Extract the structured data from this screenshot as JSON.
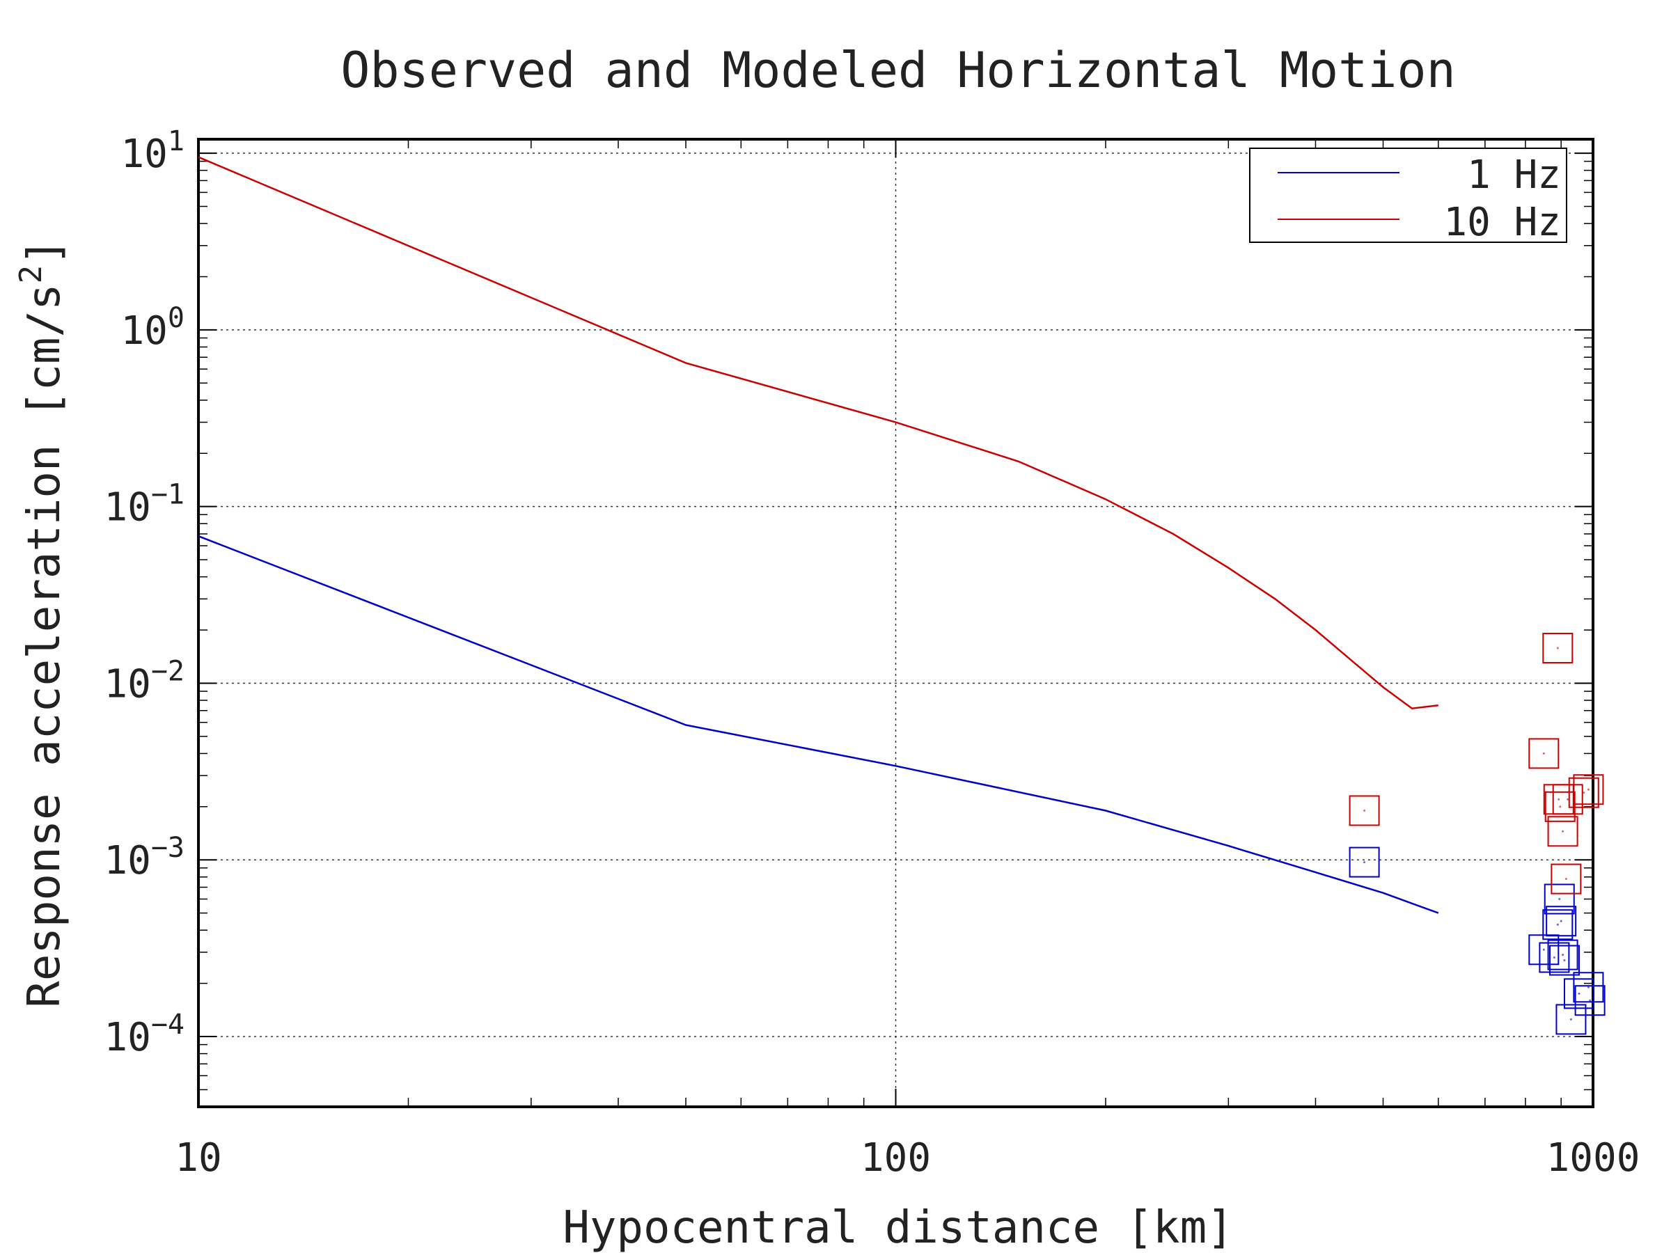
{
  "chart_data": {
    "type": "line",
    "title": "Observed and Modeled Horizontal Motion",
    "xlabel": "Hypocentral distance [km]",
    "ylabel_main": "Response acceleration [cm/s",
    "ylabel_sup": "2",
    "ylabel_end": "]",
    "xscale": "log",
    "yscale": "log",
    "xlim": [
      10,
      1000
    ],
    "ylim": [
      4e-05,
      12
    ],
    "grid": true,
    "legend_position": "top-right",
    "x_ticks": [
      {
        "value": 10,
        "label": "10"
      },
      {
        "value": 100,
        "label": "100"
      },
      {
        "value": 1000,
        "label": "1000"
      }
    ],
    "y_ticks": [
      {
        "value": 10,
        "base": "10",
        "exp": "1"
      },
      {
        "value": 1,
        "base": "10",
        "exp": "0"
      },
      {
        "value": 0.1,
        "base": "10",
        "exp": "−1"
      },
      {
        "value": 0.01,
        "base": "10",
        "exp": "−2"
      },
      {
        "value": 0.001,
        "base": "10",
        "exp": "−3"
      },
      {
        "value": 0.0001,
        "base": "10",
        "exp": "−4"
      }
    ],
    "series": [
      {
        "name": "1 Hz",
        "color": "#0000cc",
        "model": {
          "x": [
            10,
            50,
            100,
            200,
            300,
            400,
            500,
            600
          ],
          "y": [
            0.068,
            0.0058,
            0.0034,
            0.0019,
            0.0012,
            0.00085,
            0.00065,
            0.0005
          ]
        },
        "observed": {
          "x": [
            470,
            850,
            890,
            895,
            905,
            910,
            930,
            955,
            985,
            990,
            880,
            900
          ],
          "y": [
            0.00097,
            0.00031,
            0.00043,
            0.0006,
            0.00029,
            0.00027,
            0.000125,
            0.000175,
            0.00019,
            0.00016,
            0.00028,
            0.00045
          ]
        }
      },
      {
        "name": "10 Hz",
        "color": "#cc0000",
        "model": {
          "x": [
            10,
            50,
            100,
            150,
            200,
            250,
            300,
            350,
            400,
            450,
            500,
            550,
            600
          ],
          "y": [
            9.5,
            0.65,
            0.3,
            0.18,
            0.11,
            0.07,
            0.045,
            0.03,
            0.02,
            0.0135,
            0.0095,
            0.0072,
            0.0075
          ]
        },
        "observed": {
          "x": [
            470,
            850,
            890,
            893,
            897,
            905,
            915,
            970,
            985,
            920
          ],
          "y": [
            0.0019,
            0.004,
            0.0158,
            0.0022,
            0.002,
            0.00145,
            0.00078,
            0.0024,
            0.0025,
            0.0022
          ]
        }
      }
    ]
  }
}
